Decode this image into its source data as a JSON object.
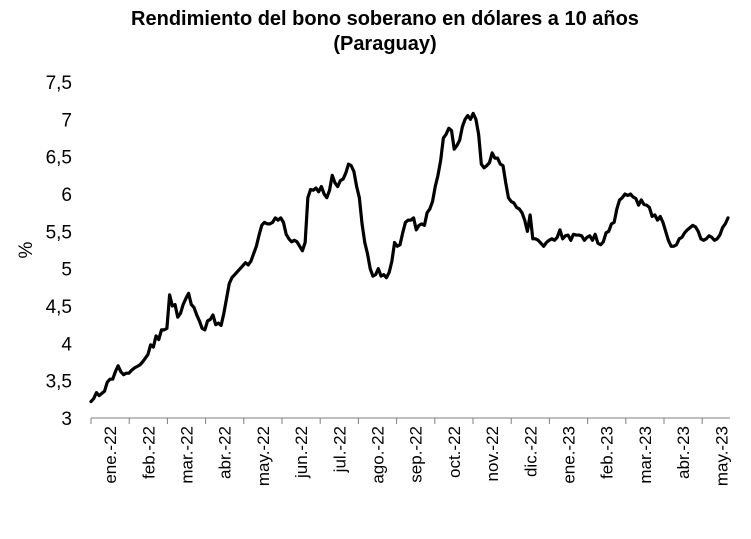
{
  "chart_data": {
    "type": "line",
    "title_line1": "Rendimiento del bono soberano en dólares a 10 años",
    "title_line2": "(Paraguay)",
    "xlabel": "",
    "ylabel": "%",
    "ylim": [
      3,
      7.5
    ],
    "yticks": [
      "3",
      "3,5",
      "4",
      "4,5",
      "5",
      "5,5",
      "6",
      "6,5",
      "7",
      "7,5"
    ],
    "yticks_values": [
      3,
      3.5,
      4,
      4.5,
      5,
      5.5,
      6,
      6.5,
      7,
      7.5
    ],
    "xtick_labels": [
      "ene.-22",
      "feb.-22",
      "mar.-22",
      "abr.-22",
      "may.-22",
      "jun.-22",
      "jul.-22",
      "ago.-22",
      "sep.-22",
      "oct.-22",
      "nov.-22",
      "dic.-22",
      "ene.-23",
      "feb.-23",
      "mar.-23",
      "abr.-23",
      "may.-23"
    ],
    "line_color": "#000000",
    "grid": false,
    "legend": "none",
    "series": [
      {
        "values": [
          3.22,
          3.26,
          3.34,
          3.3,
          3.33,
          3.36,
          3.48,
          3.52,
          3.52,
          3.62,
          3.7,
          3.62,
          3.58,
          3.6,
          3.6,
          3.64,
          3.67,
          3.69,
          3.71,
          3.75,
          3.8,
          3.85,
          3.98,
          3.95,
          4.1,
          4.05,
          4.18,
          4.18,
          4.2,
          4.65,
          4.5,
          4.52,
          4.35,
          4.4,
          4.52,
          4.6,
          4.67,
          4.52,
          4.48,
          4.38,
          4.3,
          4.2,
          4.18,
          4.3,
          4.32,
          4.38,
          4.25,
          4.27,
          4.24,
          4.4,
          4.6,
          4.8,
          4.88,
          4.92,
          4.96,
          5.0,
          5.04,
          5.08,
          5.05,
          5.1,
          5.2,
          5.3,
          5.45,
          5.58,
          5.62,
          5.6,
          5.6,
          5.62,
          5.68,
          5.65,
          5.68,
          5.62,
          5.46,
          5.4,
          5.36,
          5.38,
          5.36,
          5.3,
          5.24,
          5.35,
          5.95,
          6.06,
          6.05,
          6.08,
          6.03,
          6.1,
          6.0,
          5.95,
          6.05,
          6.25,
          6.15,
          6.1,
          6.18,
          6.2,
          6.28,
          6.4,
          6.38,
          6.3,
          6.1,
          5.95,
          5.6,
          5.35,
          5.2,
          5.0,
          4.9,
          4.92,
          5.0,
          4.9,
          4.92,
          4.88,
          4.95,
          5.1,
          5.35,
          5.3,
          5.32,
          5.48,
          5.62,
          5.65,
          5.65,
          5.68,
          5.52,
          5.58,
          5.6,
          5.58,
          5.75,
          5.8,
          5.9,
          6.1,
          6.25,
          6.45,
          6.75,
          6.8,
          6.88,
          6.85,
          6.6,
          6.65,
          6.72,
          6.9,
          7.0,
          7.05,
          7.0,
          7.08,
          7.0,
          6.8,
          6.4,
          6.35,
          6.38,
          6.42,
          6.55,
          6.48,
          6.48,
          6.4,
          6.38,
          6.15,
          5.95,
          5.9,
          5.88,
          5.82,
          5.8,
          5.75,
          5.65,
          5.5,
          5.72,
          5.4,
          5.4,
          5.38,
          5.34,
          5.3,
          5.35,
          5.38,
          5.4,
          5.38,
          5.42,
          5.52,
          5.4,
          5.44,
          5.45,
          5.38,
          5.46,
          5.45,
          5.45,
          5.44,
          5.38,
          5.42,
          5.44,
          5.38,
          5.46,
          5.34,
          5.32,
          5.36,
          5.48,
          5.5,
          5.6,
          5.62,
          5.8,
          5.92,
          5.95,
          6.0,
          5.98,
          6.0,
          5.96,
          5.94,
          5.85,
          5.92,
          5.86,
          5.85,
          5.82,
          5.7,
          5.72,
          5.65,
          5.7,
          5.62,
          5.5,
          5.38,
          5.3,
          5.3,
          5.32,
          5.4,
          5.42,
          5.48,
          5.52,
          5.55,
          5.58,
          5.56,
          5.5,
          5.4,
          5.38,
          5.4,
          5.44,
          5.42,
          5.38,
          5.4,
          5.45,
          5.55,
          5.6,
          5.68
        ]
      }
    ]
  }
}
